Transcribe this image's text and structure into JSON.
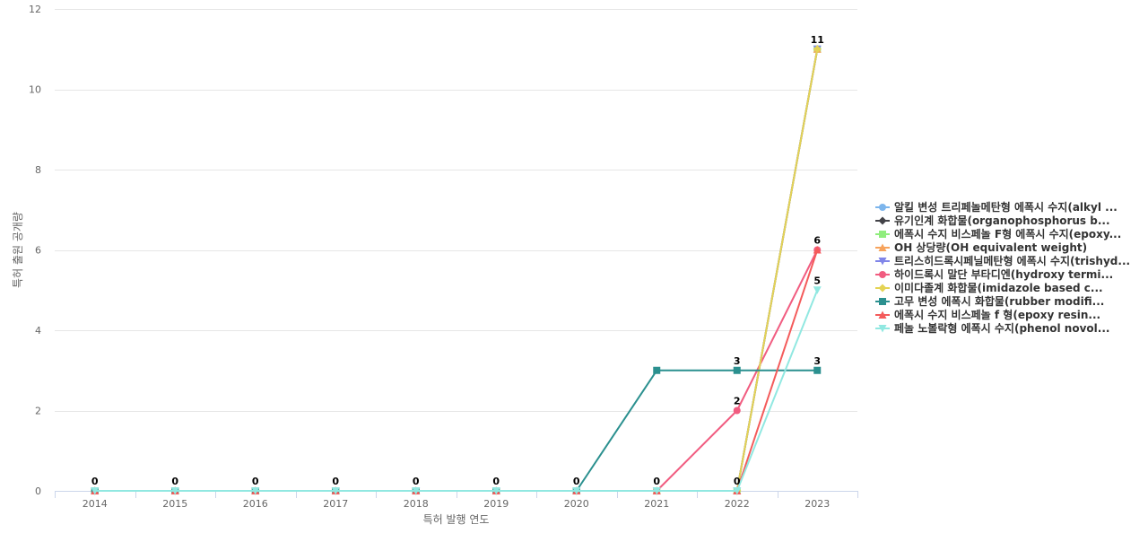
{
  "chart_data": {
    "type": "line",
    "title": "",
    "xlabel": "특허 발행 연도",
    "ylabel": "특허 출원 공개량",
    "categories": [
      "2014",
      "2015",
      "2016",
      "2017",
      "2018",
      "2019",
      "2020",
      "2021",
      "2022",
      "2023"
    ],
    "ylim": [
      0,
      12
    ],
    "yticks": [
      0,
      2,
      4,
      6,
      8,
      10,
      12
    ],
    "grid": true,
    "legend_position": "right",
    "series": [
      {
        "name": "알킬 변성 트리페놀메탄형 에폭시 수지(alkyl ...",
        "color": "#7cb5ec",
        "marker": "circle",
        "values": [
          0,
          0,
          0,
          0,
          0,
          0,
          0,
          0,
          0,
          11
        ]
      },
      {
        "name": "유기인계 화합물(organophosphorus b...",
        "color": "#434348",
        "marker": "diamond",
        "values": [
          0,
          0,
          0,
          0,
          0,
          0,
          0,
          0,
          0,
          11
        ]
      },
      {
        "name": "에폭시 수지 비스페놀 F형 에폭시 수지(epoxy...",
        "color": "#90ed7d",
        "marker": "square",
        "values": [
          0,
          0,
          0,
          0,
          0,
          0,
          0,
          0,
          0,
          11
        ]
      },
      {
        "name": "OH 상당량(OH equivalent weight)",
        "color": "#f7a35c",
        "marker": "triangle",
        "values": [
          0,
          0,
          0,
          0,
          0,
          0,
          0,
          0,
          0,
          11
        ]
      },
      {
        "name": "트리스히드록시페닐메탄형 에폭시 수지(trishyd...",
        "color": "#8085e9",
        "marker": "triangle-down",
        "values": [
          0,
          0,
          0,
          0,
          0,
          0,
          0,
          0,
          0,
          11
        ]
      },
      {
        "name": "하이드록시 말단 부타디엔(hydroxy termi...",
        "color": "#f15c80",
        "marker": "circle",
        "values": [
          0,
          0,
          0,
          0,
          0,
          0,
          0,
          0,
          2,
          6
        ]
      },
      {
        "name": "이미다졸계 화합물(imidazole based c...",
        "color": "#e4d354",
        "marker": "diamond",
        "values": [
          0,
          0,
          0,
          0,
          0,
          0,
          0,
          0,
          0,
          11
        ]
      },
      {
        "name": "고무 변성 에폭시 화합물(rubber modifi...",
        "color": "#2b908f",
        "marker": "square",
        "values": [
          0,
          0,
          0,
          0,
          0,
          0,
          0,
          3,
          3,
          3
        ]
      },
      {
        "name": "에폭시 수지 비스페놀 f 형(epoxy resin...",
        "color": "#f45b5b",
        "marker": "triangle",
        "values": [
          0,
          0,
          0,
          0,
          0,
          0,
          0,
          0,
          0,
          6
        ]
      },
      {
        "name": "페놀 노볼락형 에폭시 수지(phenol novol...",
        "color": "#91e8e1",
        "marker": "triangle-down",
        "values": [
          0,
          0,
          0,
          0,
          0,
          0,
          0,
          0,
          0,
          5
        ]
      }
    ],
    "data_labels": [
      {
        "x": "2014",
        "value": 0
      },
      {
        "x": "2015",
        "value": 0
      },
      {
        "x": "2016",
        "value": 0
      },
      {
        "x": "2017",
        "value": 0
      },
      {
        "x": "2018",
        "value": 0
      },
      {
        "x": "2019",
        "value": 0
      },
      {
        "x": "2020",
        "value": 0
      },
      {
        "x": "2021",
        "value": 0
      },
      {
        "x": "2022",
        "value": 0
      },
      {
        "x": "2022",
        "value": 2
      },
      {
        "x": "2022",
        "value": 3
      },
      {
        "x": "2023",
        "value": 11
      },
      {
        "x": "2023",
        "value": 6
      },
      {
        "x": "2023",
        "value": 5
      },
      {
        "x": "2023",
        "value": 3
      }
    ]
  }
}
